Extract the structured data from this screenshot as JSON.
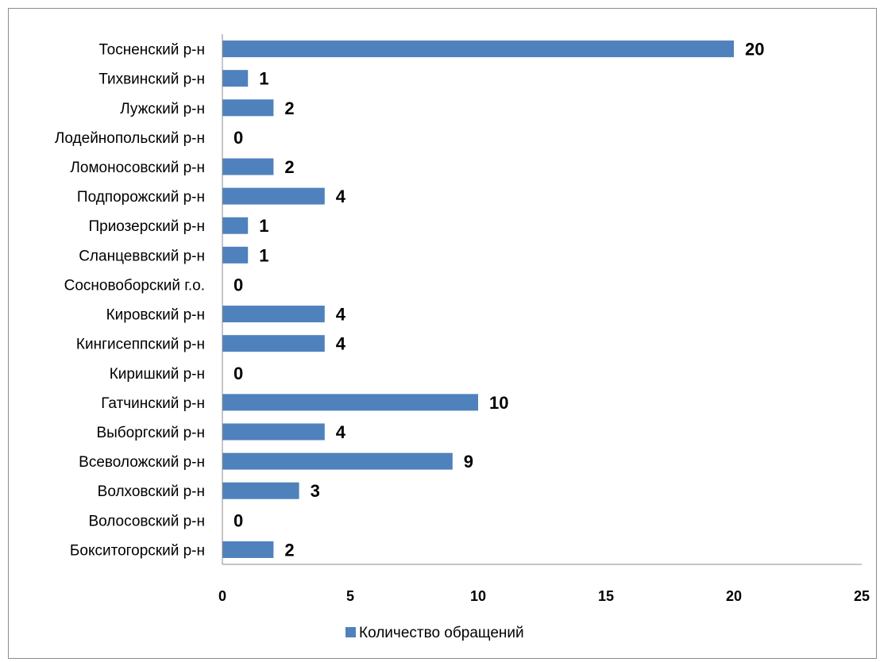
{
  "chart_data": {
    "type": "bar",
    "orientation": "horizontal",
    "categories": [
      "Тосненский р-н",
      "Тихвинский р-н",
      "Лужский р-н",
      "Лодейнопольский р-н",
      "Ломоносовский р-н",
      "Подпорожский р-н",
      "Приозерский р-н",
      "Сланцеввский р-н",
      "Сосновоборский г.о.",
      "Кировский р-н",
      "Кингисеппский р-н",
      "Киришкий р-н",
      "Гатчинский р-н",
      "Выборгский р-н",
      "Всеволожский р-н",
      "Волховский р-н",
      "Волосовский р-н",
      "Бокситогорский р-н"
    ],
    "series": [
      {
        "name": "Количество обращений",
        "values": [
          20,
          1,
          2,
          0,
          2,
          4,
          1,
          1,
          0,
          4,
          4,
          0,
          10,
          4,
          9,
          3,
          0,
          2
        ],
        "color": "#4f81bd"
      }
    ],
    "xlim": [
      0,
      25
    ],
    "xticks": [
      0,
      5,
      10,
      15,
      20,
      25
    ],
    "data_labels": true,
    "grid": false,
    "legend_position": "bottom",
    "title": "",
    "xlabel": "",
    "ylabel": ""
  }
}
